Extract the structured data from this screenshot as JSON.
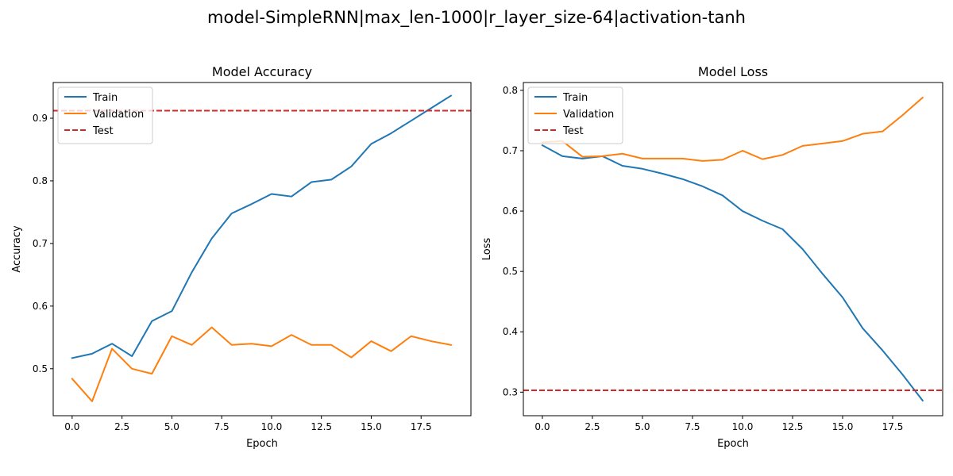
{
  "figure": {
    "suptitle": "model-SimpleRNN|max_len-1000|r_layer_size-64|activation-tanh"
  },
  "colors": {
    "train": "#1f77b4",
    "validation": "#ff7f0e",
    "test": "#d62728"
  },
  "chart_data": [
    {
      "type": "line",
      "title": "Model Accuracy",
      "xlabel": "Epoch",
      "ylabel": "Accuracy",
      "grid": false,
      "legend": "upper-left",
      "xlim": [
        -0.95,
        20.0
      ],
      "ylim": [
        0.425,
        0.957
      ],
      "xticks": [
        0.0,
        2.5,
        5.0,
        7.5,
        10.0,
        12.5,
        15.0,
        17.5
      ],
      "xtick_labels": [
        "0.0",
        "2.5",
        "5.0",
        "7.5",
        "10.0",
        "12.5",
        "15.0",
        "17.5"
      ],
      "yticks": [
        0.5,
        0.6,
        0.7,
        0.8,
        0.9
      ],
      "ytick_labels": [
        "0.5",
        "0.6",
        "0.7",
        "0.8",
        "0.9"
      ],
      "x": [
        0,
        1,
        2,
        3,
        4,
        5,
        6,
        7,
        8,
        9,
        10,
        11,
        12,
        13,
        14,
        15,
        16,
        17,
        18,
        19
      ],
      "series": [
        {
          "name": "Train",
          "color_key": "train",
          "style": "solid",
          "values": [
            0.517,
            0.524,
            0.54,
            0.52,
            0.576,
            0.592,
            0.654,
            0.708,
            0.748,
            0.763,
            0.779,
            0.775,
            0.798,
            0.802,
            0.823,
            0.859,
            0.876,
            0.896,
            0.916,
            0.936
          ]
        },
        {
          "name": "Validation",
          "color_key": "validation",
          "style": "solid",
          "values": [
            0.484,
            0.448,
            0.532,
            0.5,
            0.492,
            0.552,
            0.538,
            0.566,
            0.538,
            0.54,
            0.536,
            0.554,
            0.538,
            0.538,
            0.518,
            0.544,
            0.528,
            0.552,
            0.544,
            0.538
          ]
        },
        {
          "name": "Test",
          "color_key": "test",
          "style": "dashed",
          "hline": 0.912
        }
      ]
    },
    {
      "type": "line",
      "title": "Model Loss",
      "xlabel": "Epoch",
      "ylabel": "Loss",
      "grid": false,
      "legend": "upper-left",
      "xlim": [
        -0.95,
        20.0
      ],
      "ylim": [
        0.261,
        0.813
      ],
      "xticks": [
        0.0,
        2.5,
        5.0,
        7.5,
        10.0,
        12.5,
        15.0,
        17.5
      ],
      "xtick_labels": [
        "0.0",
        "2.5",
        "5.0",
        "7.5",
        "10.0",
        "12.5",
        "15.0",
        "17.5"
      ],
      "yticks": [
        0.3,
        0.4,
        0.5,
        0.6,
        0.7,
        0.8
      ],
      "ytick_labels": [
        "0.3",
        "0.4",
        "0.5",
        "0.6",
        "0.7",
        "0.8"
      ],
      "x": [
        0,
        1,
        2,
        3,
        4,
        5,
        6,
        7,
        8,
        9,
        10,
        11,
        12,
        13,
        14,
        15,
        16,
        17,
        18,
        19
      ],
      "series": [
        {
          "name": "Train",
          "color_key": "train",
          "style": "solid",
          "values": [
            0.709,
            0.691,
            0.687,
            0.691,
            0.675,
            0.67,
            0.662,
            0.653,
            0.641,
            0.626,
            0.6,
            0.584,
            0.57,
            0.537,
            0.496,
            0.457,
            0.406,
            0.369,
            0.329,
            0.286
          ]
        },
        {
          "name": "Validation",
          "color_key": "validation",
          "style": "solid",
          "values": [
            0.714,
            0.716,
            0.69,
            0.691,
            0.695,
            0.687,
            0.687,
            0.687,
            0.683,
            0.685,
            0.7,
            0.686,
            0.693,
            0.708,
            0.712,
            0.716,
            0.728,
            0.732,
            0.759,
            0.788
          ]
        },
        {
          "name": "Test",
          "color_key": "test",
          "style": "dashed",
          "hline": 0.303
        }
      ]
    }
  ]
}
